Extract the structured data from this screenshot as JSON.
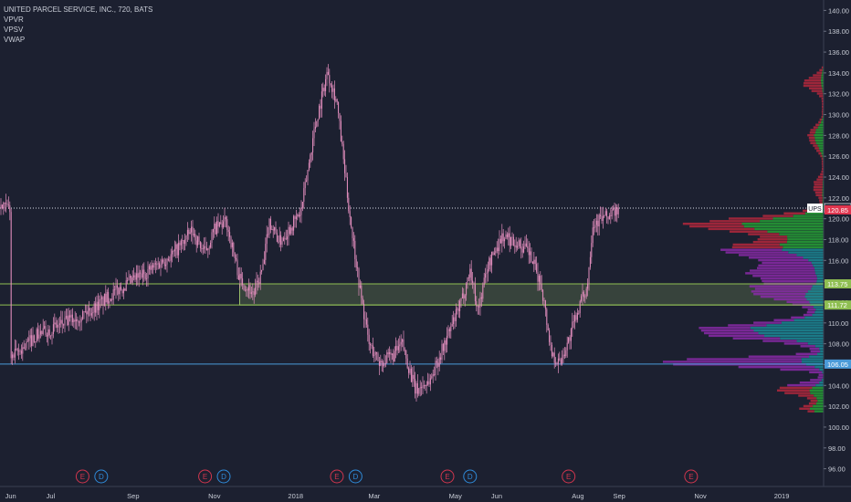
{
  "legend": {
    "symbol_line": "UNITED PARCEL SERVICE, INC., 720, BATS",
    "indicators": [
      "VPVR",
      "VPSV",
      "VWAP"
    ]
  },
  "chart_data": {
    "type": "candlestick",
    "title": "UNITED PARCEL SERVICE, INC., 720, BATS",
    "y_axis": {
      "ticks": [
        "96.00",
        "98.00",
        "100.00",
        "102.00",
        "104.00",
        "106.00",
        "108.00",
        "110.00",
        "112.00",
        "114.00",
        "116.00",
        "118.00",
        "120.00",
        "122.00",
        "124.00",
        "126.00",
        "128.00",
        "130.00",
        "132.00",
        "134.00",
        "136.00",
        "138.00",
        "140.00"
      ],
      "range": [
        95,
        141
      ]
    },
    "x_axis": {
      "ticks": [
        "Jun",
        "Jul",
        "Sep",
        "Nov",
        "2018",
        "Mar",
        "May",
        "Jun",
        "Aug",
        "Sep",
        "Nov",
        "2019"
      ]
    },
    "price_path": [
      [
        "2017-06-01",
        106.5
      ],
      [
        "2017-06-20",
        108.8
      ],
      [
        "2017-07-10",
        109.9
      ],
      [
        "2017-08-01",
        111.3
      ],
      [
        "2017-08-20",
        113.1
      ],
      [
        "2017-09-10",
        114.8
      ],
      [
        "2017-10-01",
        116.6
      ],
      [
        "2017-10-15",
        118.8
      ],
      [
        "2017-10-25",
        116.7
      ],
      [
        "2017-11-01",
        119.0
      ],
      [
        "2017-11-10",
        119.7
      ],
      [
        "2017-11-20",
        114.2
      ],
      [
        "2017-12-01",
        112.8
      ],
      [
        "2017-12-08",
        115.5
      ],
      [
        "2017-12-12",
        119.8
      ],
      [
        "2017-12-20",
        117.8
      ],
      [
        "2018-01-05",
        120.6
      ],
      [
        "2018-01-15",
        128.5
      ],
      [
        "2018-01-25",
        134.2
      ],
      [
        "2018-02-01",
        131.2
      ],
      [
        "2018-02-10",
        121.0
      ],
      [
        "2018-02-18",
        113.5
      ],
      [
        "2018-02-25",
        108.0
      ],
      [
        "2018-03-05",
        106.2
      ],
      [
        "2018-03-15",
        106.8
      ],
      [
        "2018-03-22",
        108.0
      ],
      [
        "2018-04-01",
        103.5
      ],
      [
        "2018-04-12",
        104.5
      ],
      [
        "2018-04-25",
        108.7
      ],
      [
        "2018-05-05",
        111.8
      ],
      [
        "2018-05-12",
        115.1
      ],
      [
        "2018-05-18",
        111.2
      ],
      [
        "2018-05-25",
        115.4
      ],
      [
        "2018-06-05",
        118.3
      ],
      [
        "2018-06-15",
        117.8
      ],
      [
        "2018-06-25",
        116.8
      ],
      [
        "2018-07-05",
        113.4
      ],
      [
        "2018-07-12",
        107.2
      ],
      [
        "2018-07-18",
        106.1
      ],
      [
        "2018-07-25",
        108.3
      ],
      [
        "2018-08-01",
        111.3
      ],
      [
        "2018-08-08",
        113.5
      ],
      [
        "2018-08-12",
        119.5
      ],
      [
        "2018-08-18",
        120.0
      ],
      [
        "2018-08-25",
        120.3
      ],
      [
        "2018-09-01",
        121.0
      ]
    ],
    "levels": [
      {
        "label": "UPS",
        "value": 121.02,
        "line": "dotted",
        "color": "#d8dce6"
      },
      {
        "label": "120.85",
        "value": 120.85,
        "line": "none",
        "color": "#e0364f"
      },
      {
        "label": "113.75",
        "value": 113.75,
        "line": "solid",
        "color": "#8fbf52"
      },
      {
        "label": "111.72",
        "value": 111.72,
        "line": "solid",
        "color": "#8fbf52"
      },
      {
        "label": "106.05",
        "value": 106.05,
        "line": "solid",
        "color": "#4a9ad8"
      }
    ],
    "zone": {
      "from": 111.72,
      "to": 113.75,
      "start": "2017-11-20",
      "color": "#9bbf6a"
    },
    "event_markers": [
      {
        "letter": "E",
        "date": "2017-07-25",
        "color": "#d0364e"
      },
      {
        "letter": "D",
        "date": "2017-08-08",
        "color": "#2f8ad8"
      },
      {
        "letter": "E",
        "date": "2017-10-25",
        "color": "#d0364e"
      },
      {
        "letter": "D",
        "date": "2017-11-08",
        "color": "#2f8ad8"
      },
      {
        "letter": "E",
        "date": "2018-02-01",
        "color": "#d0364e"
      },
      {
        "letter": "D",
        "date": "2018-02-15",
        "color": "#2f8ad8"
      },
      {
        "letter": "E",
        "date": "2018-04-25",
        "color": "#d0364e"
      },
      {
        "letter": "D",
        "date": "2018-05-12",
        "color": "#2f8ad8"
      },
      {
        "letter": "E",
        "date": "2018-07-25",
        "color": "#d0364e"
      },
      {
        "letter": "E",
        "date": "2018-10-25",
        "color": "#d0364e"
      }
    ],
    "volume_profile": {
      "colors": {
        "up": "#26a035",
        "down": "#b3283c",
        "value_area_up": "#1b8a96",
        "value_area_down": "#8a2aa8"
      },
      "value_area": [
        104.0,
        117.0
      ]
    },
    "colors": {
      "background": "#1c2030",
      "candle": "#e58fbf",
      "axis_text": "#c8ccd6"
    }
  }
}
